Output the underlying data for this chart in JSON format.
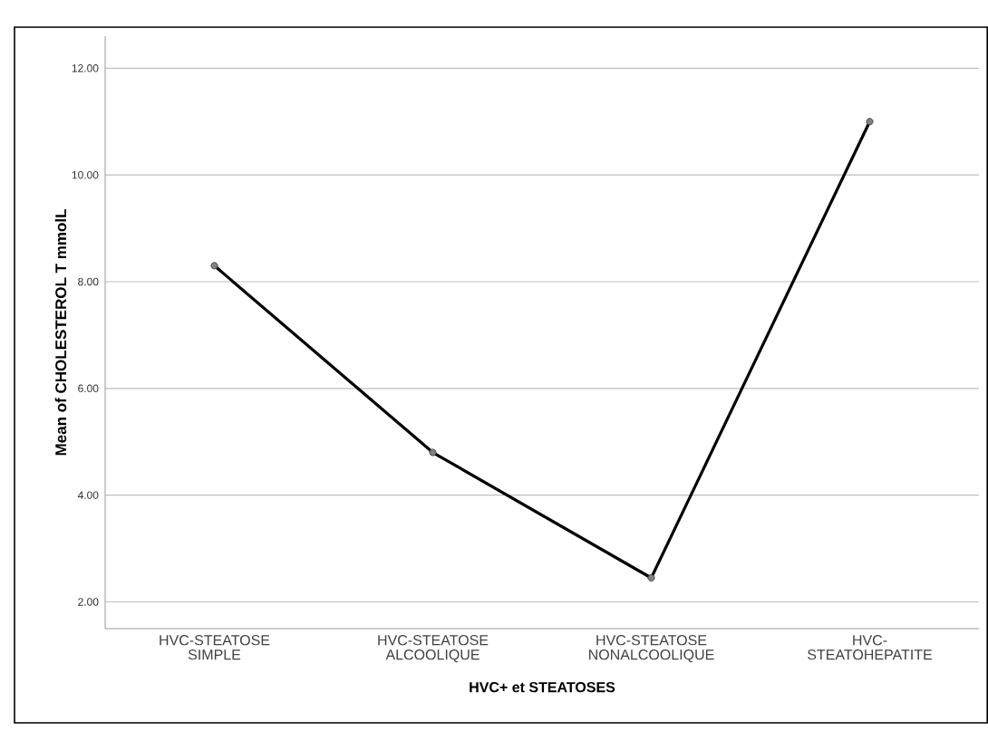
{
  "chart_data": {
    "type": "line",
    "xlabel": "HVC+ et STEATOSES",
    "ylabel": "Mean of CHOLESTEROL T  mmolL",
    "categories": [
      "HVC-STEATOSE SIMPLE",
      "HVC-STEATOSE ALCOOLIQUE",
      "HVC-STEATOSE NONALCOOLIQUE",
      "HVC-STEATOHEPATITE"
    ],
    "values": [
      8.3,
      4.8,
      2.45,
      11.0
    ],
    "color": "#000000",
    "ylim": [
      1.5,
      12.6
    ],
    "yticks": [
      {
        "value": 2,
        "label": "2.00"
      },
      {
        "value": 4,
        "label": "4.00"
      },
      {
        "value": 6,
        "label": "6.00"
      },
      {
        "value": 8,
        "label": "8.00"
      },
      {
        "value": 10,
        "label": "10.00"
      },
      {
        "value": 12,
        "label": "12.00"
      }
    ],
    "grid": "y",
    "marker": "circle",
    "line_style": "solid"
  }
}
